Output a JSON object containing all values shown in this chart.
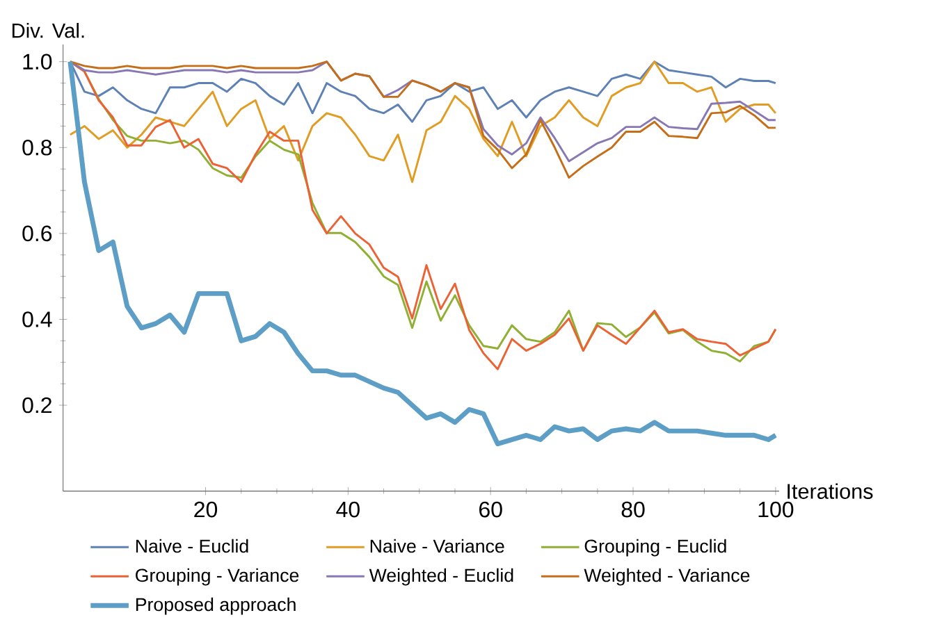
{
  "chart_data": {
    "type": "line",
    "xlabel": "Iterations",
    "ylabel": "Div. Val.",
    "x": [
      1,
      3,
      5,
      7,
      9,
      11,
      13,
      15,
      17,
      19,
      21,
      23,
      25,
      27,
      29,
      31,
      33,
      35,
      37,
      39,
      41,
      43,
      45,
      47,
      49,
      51,
      53,
      55,
      57,
      59,
      61,
      63,
      65,
      67,
      69,
      71,
      73,
      75,
      77,
      79,
      81,
      83,
      85,
      87,
      89,
      91,
      93,
      95,
      97,
      99,
      100
    ],
    "xlim": [
      0,
      100.5
    ],
    "ylim": [
      0,
      1.04
    ],
    "xticks": [
      20,
      40,
      60,
      80,
      100
    ],
    "yticks": [
      0.2,
      0.4,
      0.6,
      0.8,
      {
        "value": 1,
        "label": "1.0"
      }
    ],
    "grid": false,
    "legend": "bottom",
    "marker": "none",
    "line_style": "solid",
    "series": [
      {
        "name": "Naive - Euclid",
        "color": "#5e81b5",
        "values": [
          1.0,
          0.93,
          0.92,
          0.94,
          0.91,
          0.89,
          0.88,
          0.94,
          0.94,
          0.95,
          0.95,
          0.93,
          0.96,
          0.95,
          0.92,
          0.9,
          0.95,
          0.88,
          0.95,
          0.93,
          0.92,
          0.89,
          0.88,
          0.9,
          0.86,
          0.91,
          0.92,
          0.95,
          0.93,
          0.94,
          0.89,
          0.91,
          0.87,
          0.91,
          0.93,
          0.94,
          0.93,
          0.92,
          0.96,
          0.97,
          0.96,
          1.0,
          0.98,
          0.975,
          0.97,
          0.965,
          0.94,
          0.96,
          0.955,
          0.955,
          0.95
        ]
      },
      {
        "name": "Naive - Variance",
        "color": "#e19c24",
        "values": [
          0.83,
          0.85,
          0.82,
          0.84,
          0.8,
          0.83,
          0.87,
          0.86,
          0.85,
          0.89,
          0.93,
          0.85,
          0.89,
          0.91,
          0.82,
          0.85,
          0.77,
          0.85,
          0.88,
          0.87,
          0.83,
          0.78,
          0.77,
          0.83,
          0.72,
          0.84,
          0.86,
          0.92,
          0.89,
          0.82,
          0.78,
          0.86,
          0.78,
          0.85,
          0.87,
          0.91,
          0.87,
          0.85,
          0.92,
          0.94,
          0.95,
          1.0,
          0.95,
          0.95,
          0.93,
          0.94,
          0.86,
          0.89,
          0.9,
          0.9,
          0.88
        ]
      },
      {
        "name": "Grouping - Euclid",
        "color": "#8fb032",
        "values": [
          1.0,
          0.977,
          0.913,
          0.864,
          0.827,
          0.816,
          0.816,
          0.81,
          0.816,
          0.795,
          0.752,
          0.735,
          0.73,
          0.779,
          0.816,
          0.795,
          0.784,
          0.671,
          0.601,
          0.601,
          0.58,
          0.545,
          0.5,
          0.48,
          0.38,
          0.488,
          0.397,
          0.456,
          0.386,
          0.338,
          0.332,
          0.386,
          0.354,
          0.348,
          0.37,
          0.42,
          0.327,
          0.391,
          0.388,
          0.359,
          0.381,
          0.416,
          0.367,
          0.375,
          0.348,
          0.327,
          0.321,
          0.302,
          0.338,
          0.348,
          0.377
        ]
      },
      {
        "name": "Grouping - Variance",
        "color": "#eb6235",
        "values": [
          1.0,
          0.977,
          0.91,
          0.87,
          0.805,
          0.805,
          0.848,
          0.864,
          0.8,
          0.82,
          0.762,
          0.752,
          0.72,
          0.784,
          0.837,
          0.816,
          0.816,
          0.655,
          0.6,
          0.64,
          0.6,
          0.574,
          0.52,
          0.499,
          0.402,
          0.526,
          0.424,
          0.483,
          0.375,
          0.321,
          0.284,
          0.354,
          0.327,
          0.343,
          0.364,
          0.402,
          0.327,
          0.386,
          0.364,
          0.343,
          0.381,
          0.42,
          0.37,
          0.377,
          0.354,
          0.348,
          0.343,
          0.316,
          0.332,
          0.348,
          0.377
        ]
      },
      {
        "name": "Weighted - Euclid",
        "color": "#8778b3",
        "values": [
          1.0,
          0.98,
          0.975,
          0.975,
          0.98,
          0.975,
          0.97,
          0.975,
          0.98,
          0.98,
          0.98,
          0.975,
          0.98,
          0.975,
          0.975,
          0.975,
          0.975,
          0.98,
          1.0,
          0.956,
          0.972,
          0.966,
          0.918,
          0.934,
          0.956,
          0.945,
          0.93,
          0.95,
          0.94,
          0.843,
          0.805,
          0.784,
          0.81,
          0.87,
          0.822,
          0.768,
          0.789,
          0.81,
          0.822,
          0.848,
          0.848,
          0.87,
          0.848,
          0.845,
          0.843,
          0.902,
          0.904,
          0.907,
          0.886,
          0.864,
          0.864
        ]
      },
      {
        "name": "Weighted - Variance",
        "color": "#c56e1a",
        "values": [
          1.0,
          0.99,
          0.985,
          0.985,
          0.99,
          0.985,
          0.985,
          0.985,
          0.99,
          0.99,
          0.99,
          0.985,
          0.99,
          0.985,
          0.985,
          0.985,
          0.985,
          0.99,
          1.0,
          0.956,
          0.972,
          0.966,
          0.918,
          0.918,
          0.956,
          0.945,
          0.93,
          0.95,
          0.94,
          0.827,
          0.795,
          0.752,
          0.784,
          0.864,
          0.8,
          0.73,
          0.757,
          0.779,
          0.8,
          0.837,
          0.837,
          0.86,
          0.827,
          0.825,
          0.822,
          0.88,
          0.882,
          0.897,
          0.875,
          0.846,
          0.846
        ]
      },
      {
        "name": "Proposed approach",
        "color": "#5d9ec7",
        "values": [
          1.0,
          0.72,
          0.56,
          0.58,
          0.43,
          0.38,
          0.39,
          0.41,
          0.37,
          0.46,
          0.46,
          0.46,
          0.35,
          0.36,
          0.39,
          0.37,
          0.32,
          0.28,
          0.28,
          0.27,
          0.27,
          0.255,
          0.24,
          0.23,
          0.2,
          0.17,
          0.18,
          0.16,
          0.19,
          0.18,
          0.11,
          0.12,
          0.13,
          0.12,
          0.15,
          0.14,
          0.145,
          0.12,
          0.14,
          0.145,
          0.14,
          0.16,
          0.14,
          0.14,
          0.14,
          0.135,
          0.13,
          0.13,
          0.13,
          0.12,
          0.13
        ]
      }
    ]
  }
}
